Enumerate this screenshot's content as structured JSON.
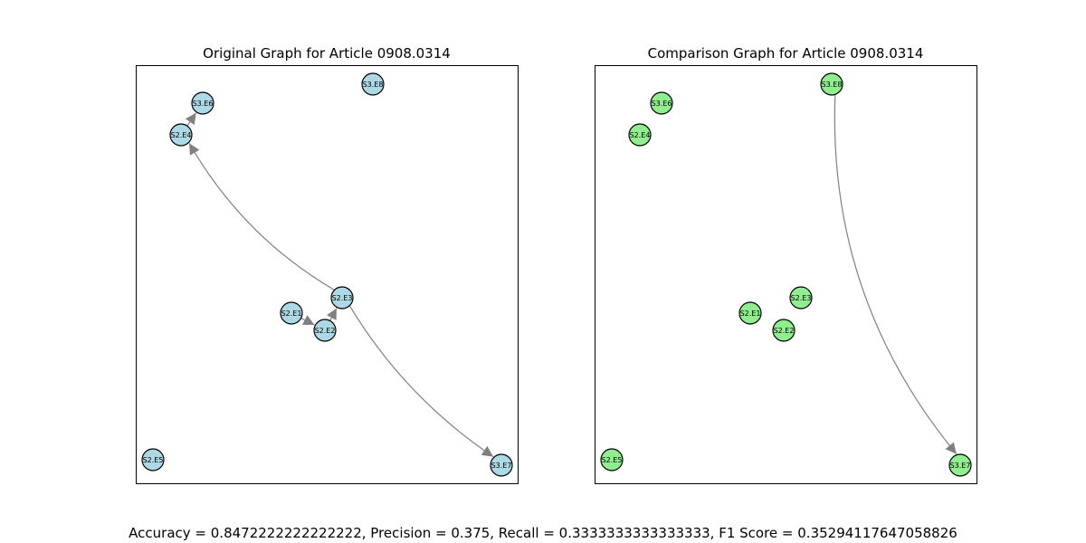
{
  "panels": [
    {
      "title": "Original Graph for Article 0908.0314",
      "node_color": "#add8e6",
      "nodes": [
        {
          "id": "S3.E6"
        },
        {
          "id": "S3.E8"
        },
        {
          "id": "S2.E4"
        },
        {
          "id": "S2.E3"
        },
        {
          "id": "S2.E1"
        },
        {
          "id": "S2.E2"
        },
        {
          "id": "S2.E5"
        },
        {
          "id": "S3.E7"
        }
      ],
      "edges": [
        {
          "from": "S2.E4",
          "to": "S3.E6"
        },
        {
          "from": "S2.E1",
          "to": "S2.E2"
        },
        {
          "from": "S2.E2",
          "to": "S2.E3"
        },
        {
          "from": "S2.E3",
          "to": "S2.E4"
        },
        {
          "from": "S2.E3",
          "to": "S3.E7"
        }
      ]
    },
    {
      "title": "Comparison Graph for Article 0908.0314",
      "node_color": "#90ee90",
      "nodes": [
        {
          "id": "S3.E6"
        },
        {
          "id": "S3.E8"
        },
        {
          "id": "S2.E4"
        },
        {
          "id": "S2.E3"
        },
        {
          "id": "S2.E1"
        },
        {
          "id": "S2.E2"
        },
        {
          "id": "S2.E5"
        },
        {
          "id": "S3.E7"
        }
      ],
      "edges": [
        {
          "from": "S3.E8",
          "to": "S3.E7"
        }
      ]
    }
  ],
  "edge_color": "#808080",
  "metrics_text": "Accuracy = 0.8472222222222222, Precision = 0.375, Recall = 0.3333333333333333, F1 Score = 0.35294117647058826"
}
